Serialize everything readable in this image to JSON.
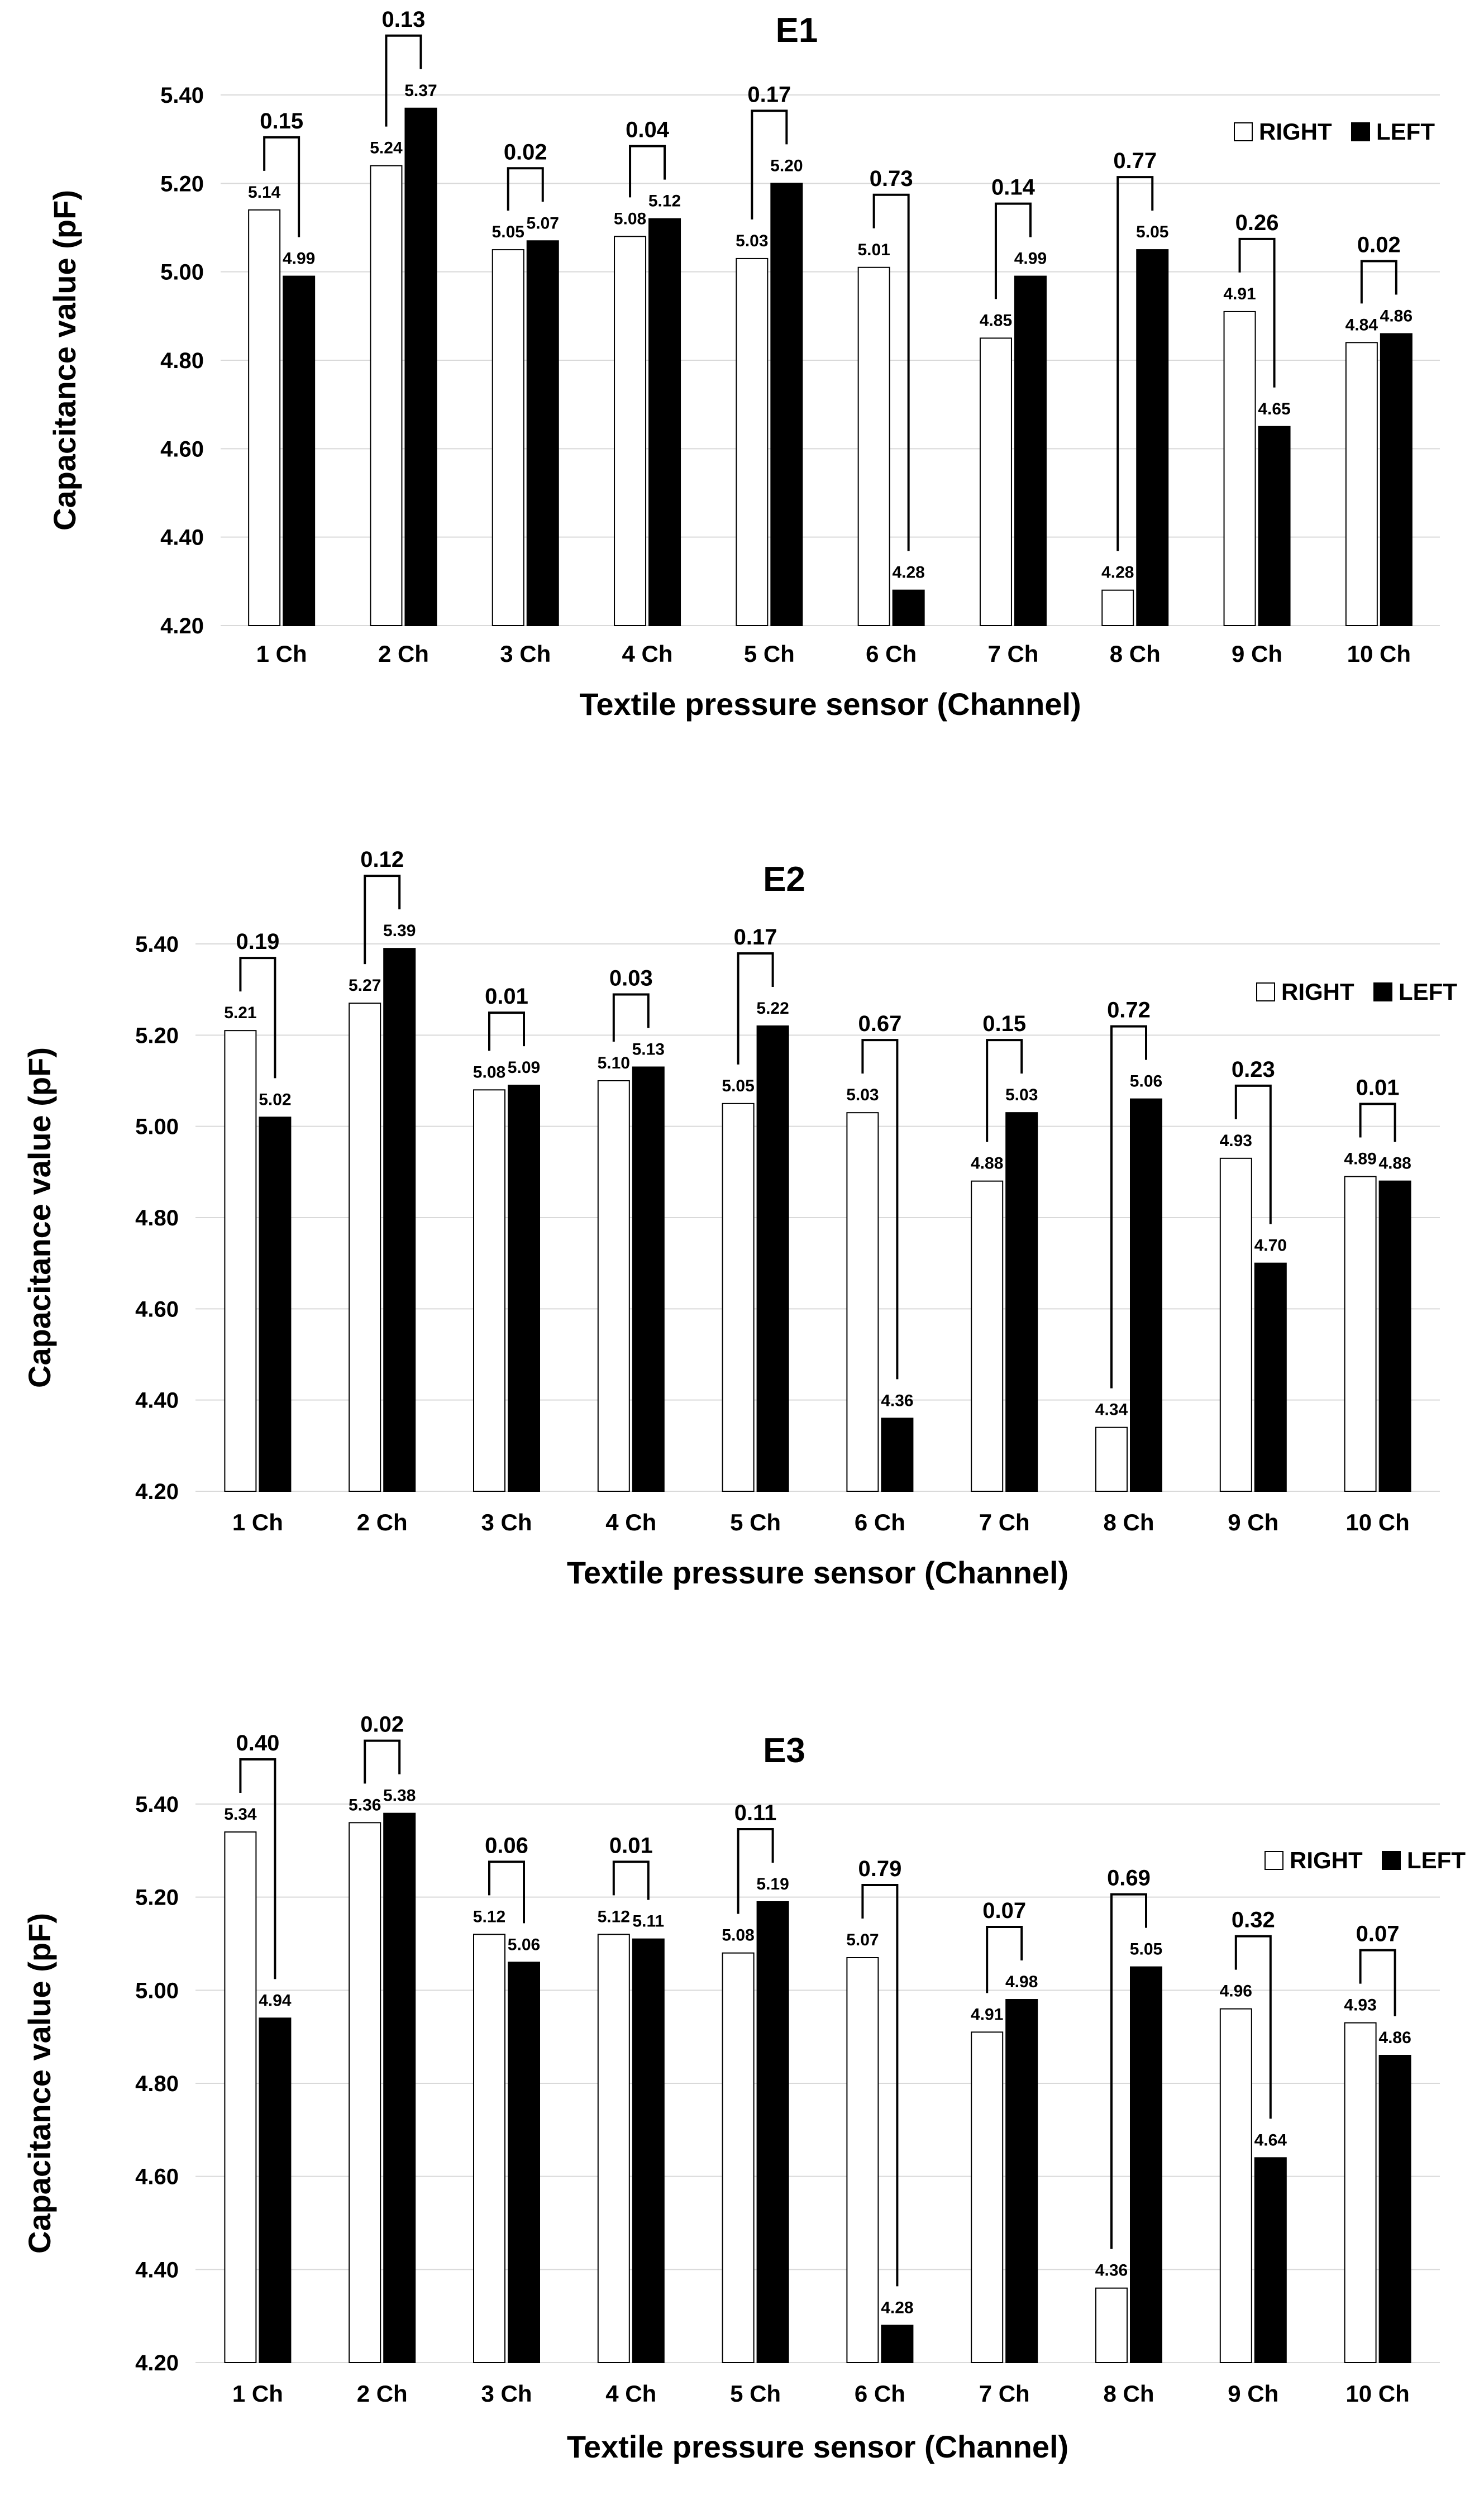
{
  "colors": {
    "right": "#ffffff",
    "left": "#000000",
    "gridline": "#d9d9d9"
  },
  "chart_data": [
    {
      "type": "bar",
      "title": "E1",
      "xlabel": "Textile pressure sensor (Channel)",
      "ylabel": "Capacitance value (pF)",
      "ylim": [
        4.2,
        5.4
      ],
      "yticks": [
        "4.20",
        "4.40",
        "4.60",
        "4.80",
        "5.00",
        "5.20",
        "5.40"
      ],
      "grid": true,
      "legend_position": "top-right",
      "categories": [
        "1 Ch",
        "2 Ch",
        "3 Ch",
        "4 Ch",
        "5 Ch",
        "6 Ch",
        "7 Ch",
        "8 Ch",
        "9 Ch",
        "10 Ch"
      ],
      "series": [
        {
          "name": "RIGHT",
          "values": [
            5.14,
            5.24,
            5.05,
            5.08,
            5.03,
            5.01,
            4.85,
            4.28,
            4.91,
            4.84
          ],
          "labels": [
            "5.14",
            "5.24",
            "5.05",
            "5.08",
            "5.03",
            "5.01",
            "4.85",
            "4.28",
            "4.91",
            "4.84"
          ]
        },
        {
          "name": "LEFT",
          "values": [
            4.99,
            5.37,
            5.07,
            5.12,
            5.2,
            4.28,
            4.99,
            5.05,
            4.65,
            4.86
          ],
          "labels": [
            "4.99",
            "5.37",
            "5.07",
            "5.12",
            "5.20",
            "4.28",
            "4.99",
            "5.05",
            "4.65",
            "4.86"
          ]
        }
      ],
      "differences": [
        "0.15",
        "0.13",
        "0.02",
        "0.04",
        "0.17",
        "0.73",
        "0.14",
        "0.77",
        "0.26",
        "0.02"
      ]
    },
    {
      "type": "bar",
      "title": "E2",
      "xlabel": "Textile pressure sensor (Channel)",
      "ylabel": "Capacitance value (pF)",
      "ylim": [
        4.2,
        5.4
      ],
      "yticks": [
        "4.20",
        "4.40",
        "4.60",
        "4.80",
        "5.00",
        "5.20",
        "5.40"
      ],
      "grid": true,
      "legend_position": "top-right",
      "categories": [
        "1 Ch",
        "2 Ch",
        "3 Ch",
        "4 Ch",
        "5 Ch",
        "6 Ch",
        "7 Ch",
        "8 Ch",
        "9 Ch",
        "10 Ch"
      ],
      "series": [
        {
          "name": "RIGHT",
          "values": [
            5.21,
            5.27,
            5.08,
            5.1,
            5.05,
            5.03,
            4.88,
            4.34,
            4.93,
            4.89
          ],
          "labels": [
            "5.21",
            "5.27",
            "5.08",
            "5.10",
            "5.05",
            "5.03",
            "4.88",
            "4.34",
            "4.93",
            "4.89"
          ]
        },
        {
          "name": "LEFT",
          "values": [
            5.02,
            5.39,
            5.09,
            5.13,
            5.22,
            4.36,
            5.03,
            5.06,
            4.7,
            4.88
          ],
          "labels": [
            "5.02",
            "5.39",
            "5.09",
            "5.13",
            "5.22",
            "4.36",
            "5.03",
            "5.06",
            "4.70",
            "4.88"
          ]
        }
      ],
      "differences": [
        "0.19",
        "0.12",
        "0.01",
        "0.03",
        "0.17",
        "0.67",
        "0.15",
        "0.72",
        "0.23",
        "0.01"
      ]
    },
    {
      "type": "bar",
      "title": "E3",
      "xlabel": "Textile pressure sensor (Channel)",
      "ylabel": "Capacitance value (pF)",
      "ylim": [
        4.2,
        5.4
      ],
      "yticks": [
        "4.20",
        "4.40",
        "4.60",
        "4.80",
        "5.00",
        "5.20",
        "5.40"
      ],
      "grid": true,
      "legend_position": "top-right",
      "categories": [
        "1 Ch",
        "2 Ch",
        "3 Ch",
        "4 Ch",
        "5 Ch",
        "6 Ch",
        "7 Ch",
        "8 Ch",
        "9 Ch",
        "10 Ch"
      ],
      "series": [
        {
          "name": "RIGHT",
          "values": [
            5.34,
            5.36,
            5.12,
            5.12,
            5.08,
            5.07,
            4.91,
            4.36,
            4.96,
            4.93
          ],
          "labels": [
            "5.34",
            "5.36",
            "5.12",
            "5.12",
            "5.08",
            "5.07",
            "4.91",
            "4.36",
            "4.96",
            "4.93"
          ]
        },
        {
          "name": "LEFT",
          "values": [
            4.94,
            5.38,
            5.06,
            5.11,
            5.19,
            4.28,
            4.98,
            5.05,
            4.64,
            4.86
          ],
          "labels": [
            "4.94",
            "5.38",
            "5.06",
            "5.11",
            "5.19",
            "4.28",
            "4.98",
            "5.05",
            "4.64",
            "4.86"
          ]
        }
      ],
      "differences": [
        "0.40",
        "0.02",
        "0.06",
        "0.01",
        "0.11",
        "0.79",
        "0.07",
        "0.69",
        "0.32",
        "0.07"
      ]
    }
  ]
}
